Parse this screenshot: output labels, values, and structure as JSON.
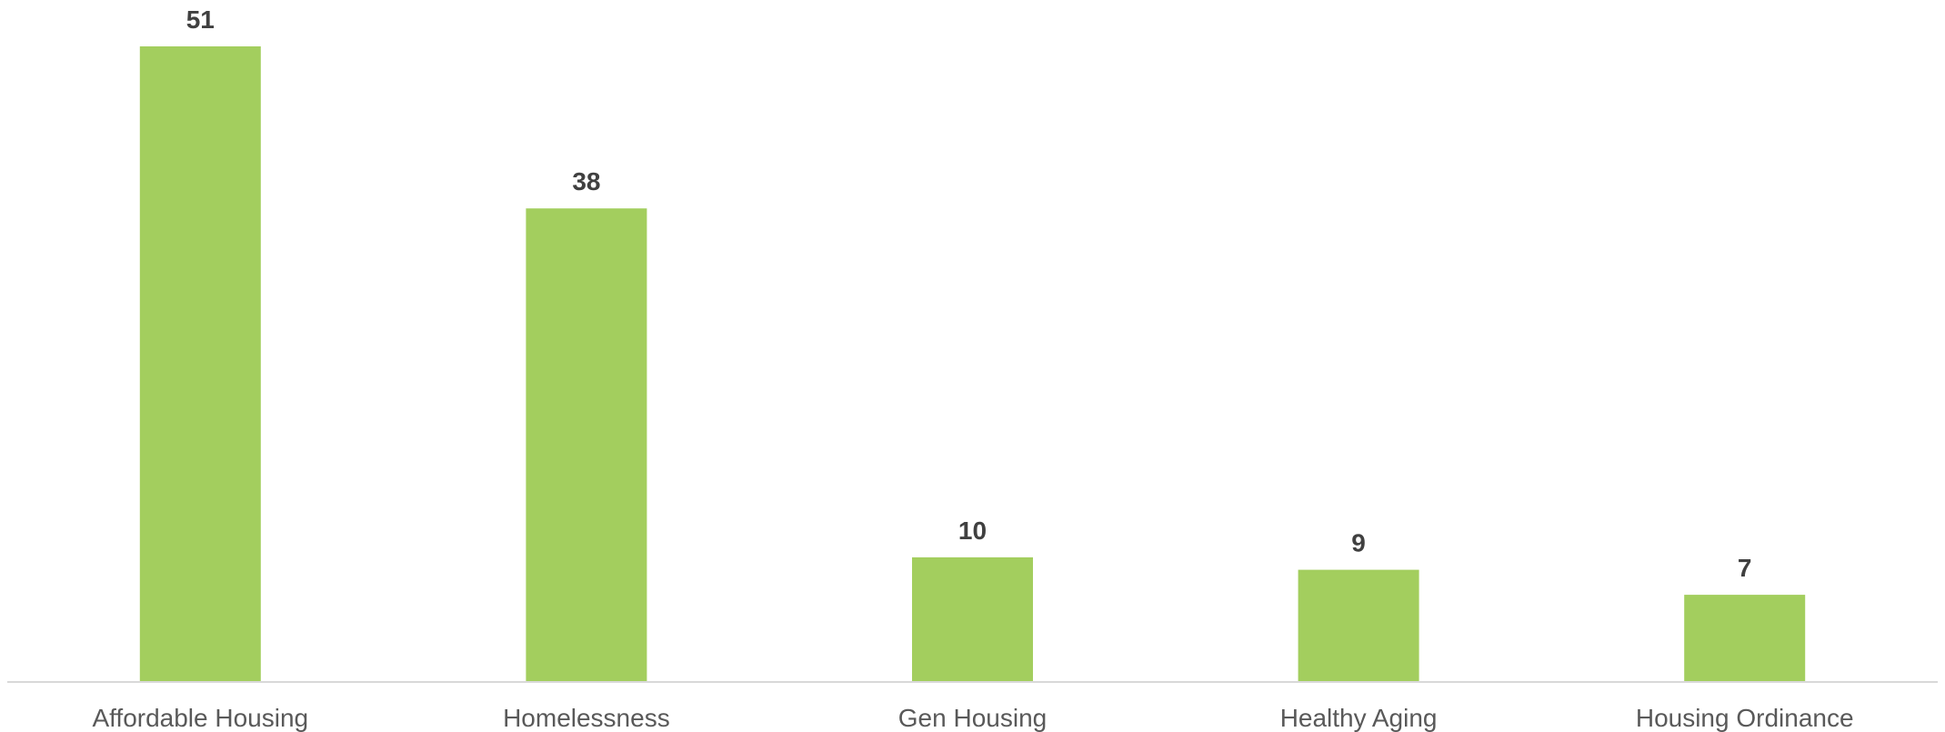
{
  "chart_data": {
    "type": "bar",
    "categories": [
      "Affordable Housing",
      "Homelessness",
      "Gen Housing",
      "Healthy Aging",
      "Housing Ordinance"
    ],
    "values": [
      51,
      38,
      10,
      9,
      7
    ],
    "title": "",
    "xlabel": "",
    "ylabel": "",
    "ylim": [
      0,
      51
    ],
    "grid": false,
    "legend": "none",
    "data_labels": true,
    "colors": {
      "bar": "#A3CE5E",
      "axis": "#D9D9D9",
      "value_label": "#404040",
      "category_label": "#595959"
    }
  }
}
